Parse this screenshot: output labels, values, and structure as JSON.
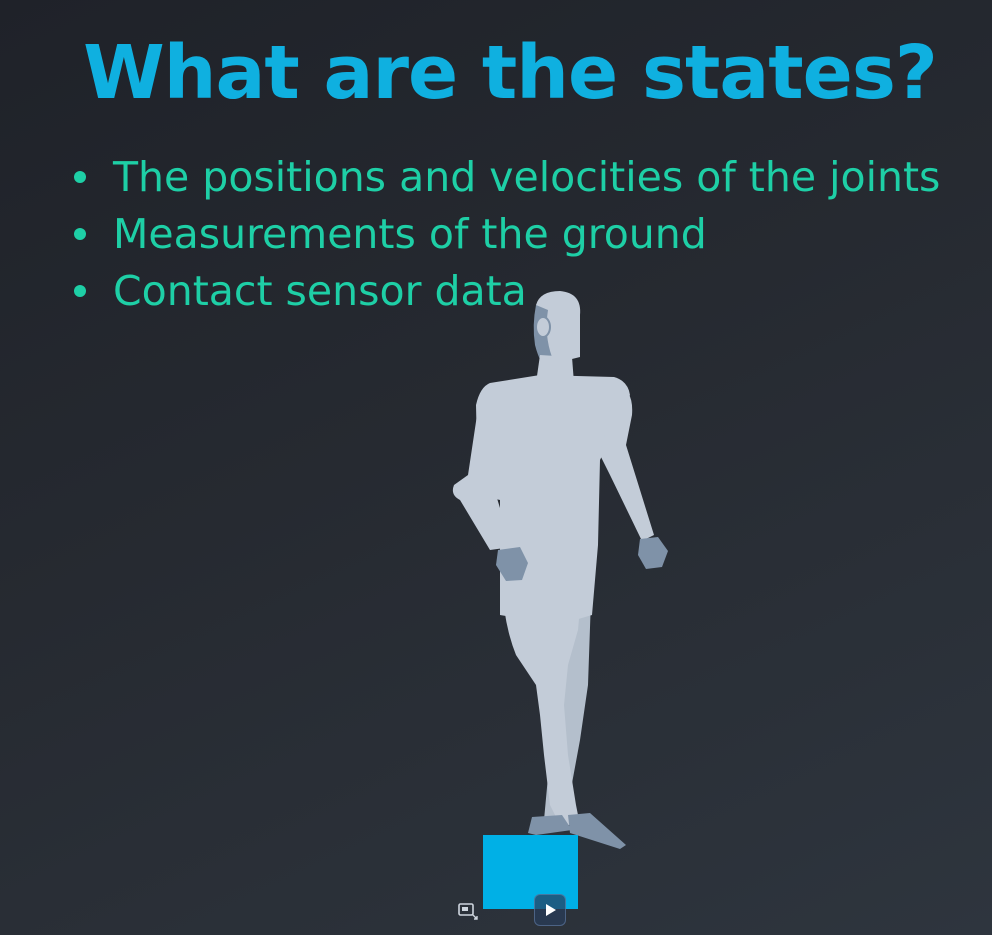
{
  "slide": {
    "title": "What are the states?",
    "bullets": [
      "The positions and velocities of the joints",
      "Measurements of the ground",
      "Contact sensor data"
    ]
  },
  "colors": {
    "title": "#0fb0e0",
    "bullet_text": "#1ecfa6",
    "figure_body": "#c3ccd8",
    "figure_shade": "#7f92a8",
    "pedestal": "#00b0e6",
    "background": "#262a31"
  },
  "player": {
    "pip_icon": "picture-in-picture-icon",
    "play_icon": "play-icon"
  }
}
